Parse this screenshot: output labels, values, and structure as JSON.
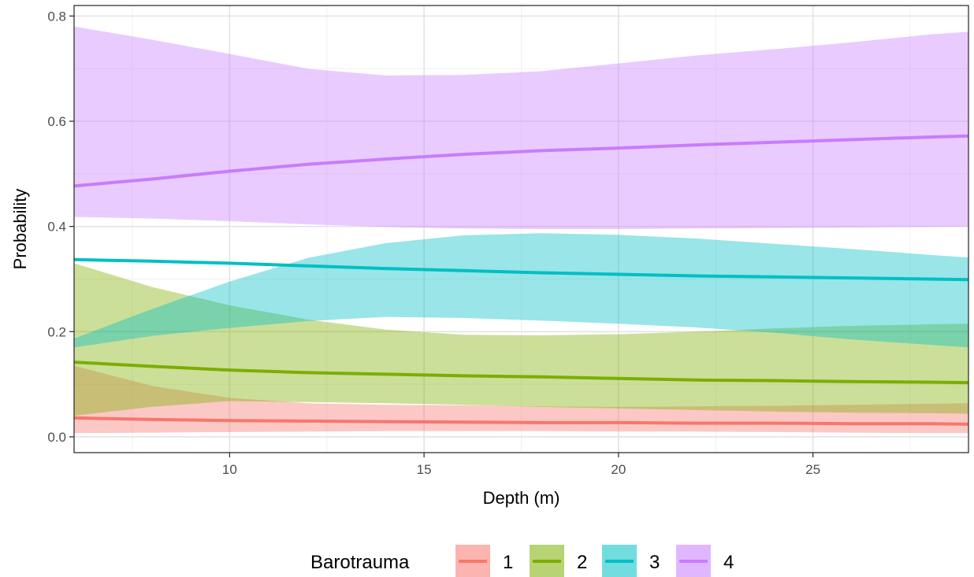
{
  "chart_data": {
    "type": "line",
    "title": "",
    "xlabel": "Depth (m)",
    "ylabel": "Probability",
    "xlim": [
      6,
      29
    ],
    "ylim": [
      -0.03,
      0.82
    ],
    "x_ticks": [
      10,
      15,
      20,
      25
    ],
    "x_tick_labels": [
      "10",
      "15",
      "20",
      "25"
    ],
    "y_ticks": [
      0.0,
      0.2,
      0.4,
      0.6,
      0.8
    ],
    "y_tick_labels": [
      "0.0",
      "0.2",
      "0.4",
      "0.6",
      "0.8"
    ],
    "grid": true,
    "theme": "bw",
    "legend": {
      "title": "Barotrauma",
      "position": "bottom",
      "orientation": "horizontal"
    },
    "x": [
      6,
      8,
      10,
      12,
      14,
      16,
      18,
      20,
      22,
      24,
      26,
      28,
      29
    ],
    "series": [
      {
        "name": "1",
        "color": "#F8766D",
        "values": [
          0.036,
          0.033,
          0.031,
          0.03,
          0.029,
          0.028,
          0.027,
          0.027,
          0.026,
          0.026,
          0.025,
          0.025,
          0.024
        ],
        "lower": [
          0.007,
          0.008,
          0.009,
          0.01,
          0.011,
          0.011,
          0.011,
          0.01,
          0.01,
          0.009,
          0.008,
          0.007,
          0.007
        ],
        "upper": [
          0.135,
          0.097,
          0.074,
          0.064,
          0.061,
          0.06,
          0.058,
          0.057,
          0.058,
          0.059,
          0.061,
          0.063,
          0.064
        ]
      },
      {
        "name": "2",
        "color": "#7CAE00",
        "values": [
          0.142,
          0.134,
          0.127,
          0.122,
          0.119,
          0.116,
          0.114,
          0.111,
          0.108,
          0.107,
          0.105,
          0.104,
          0.103
        ],
        "lower": [
          0.04,
          0.057,
          0.068,
          0.066,
          0.064,
          0.061,
          0.057,
          0.054,
          0.051,
          0.048,
          0.046,
          0.045,
          0.044
        ],
        "upper": [
          0.33,
          0.285,
          0.25,
          0.223,
          0.204,
          0.194,
          0.193,
          0.195,
          0.2,
          0.206,
          0.211,
          0.214,
          0.215
        ]
      },
      {
        "name": "3",
        "color": "#00BFC4",
        "values": [
          0.337,
          0.334,
          0.33,
          0.325,
          0.32,
          0.316,
          0.312,
          0.309,
          0.306,
          0.304,
          0.302,
          0.3,
          0.299
        ],
        "lower": [
          0.17,
          0.192,
          0.207,
          0.22,
          0.228,
          0.226,
          0.221,
          0.215,
          0.208,
          0.198,
          0.185,
          0.175,
          0.17
        ],
        "upper": [
          0.187,
          0.243,
          0.295,
          0.34,
          0.368,
          0.383,
          0.387,
          0.384,
          0.377,
          0.367,
          0.357,
          0.346,
          0.341
        ]
      },
      {
        "name": "4",
        "color": "#C77CFF",
        "values": [
          0.477,
          0.49,
          0.505,
          0.518,
          0.528,
          0.537,
          0.544,
          0.549,
          0.555,
          0.56,
          0.565,
          0.57,
          0.572
        ],
        "lower": [
          0.418,
          0.415,
          0.41,
          0.404,
          0.399,
          0.396,
          0.395,
          0.395,
          0.396,
          0.397,
          0.398,
          0.399,
          0.4
        ],
        "upper": [
          0.78,
          0.755,
          0.728,
          0.7,
          0.687,
          0.688,
          0.695,
          0.71,
          0.725,
          0.737,
          0.75,
          0.765,
          0.77
        ]
      }
    ]
  }
}
